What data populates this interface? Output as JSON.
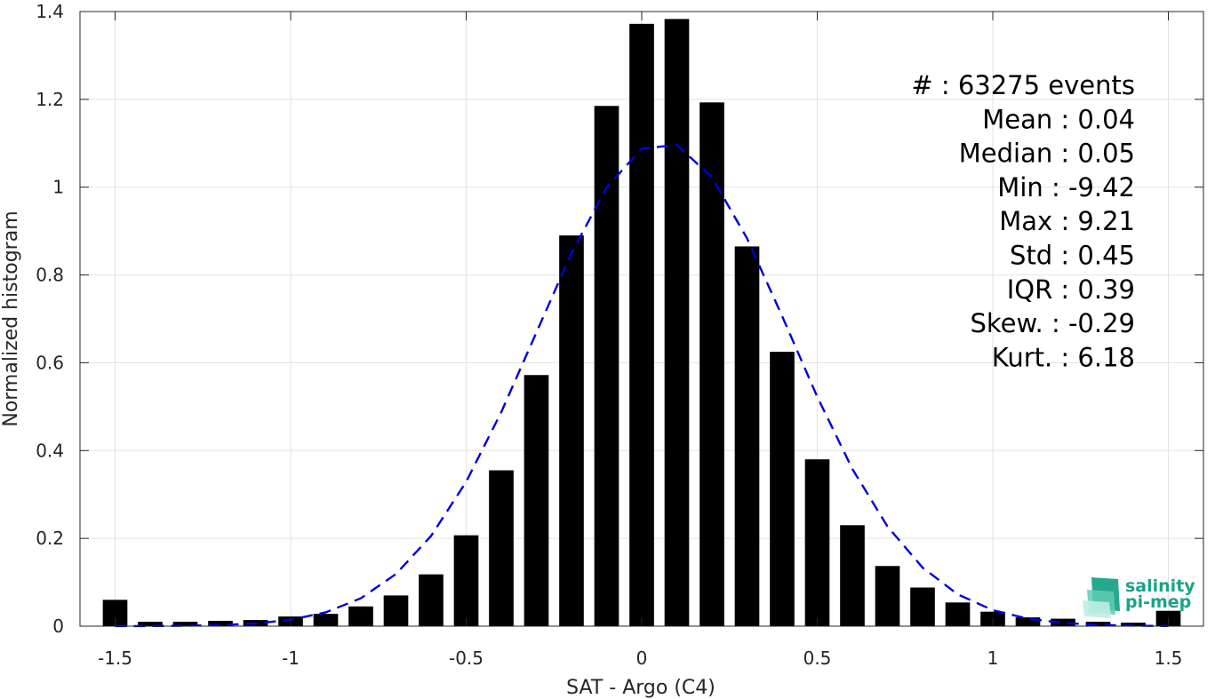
{
  "chart_data": {
    "type": "bar",
    "xlabel": "SAT - Argo (C4)",
    "ylabel": "Normalized histogram",
    "xlim": [
      -1.6,
      1.6
    ],
    "ylim": [
      0,
      1.4
    ],
    "x_ticks": [
      -1.5,
      -1,
      -0.5,
      0,
      0.5,
      1,
      1.5
    ],
    "x_tick_labels": [
      "-1.5",
      "-1",
      "-0.5",
      "0",
      "0.5",
      "1",
      "1.5"
    ],
    "y_ticks": [
      0,
      0.2,
      0.4,
      0.6,
      0.8,
      1,
      1.2,
      1.4
    ],
    "y_tick_labels": [
      "0",
      "0.2",
      "0.4",
      "0.6",
      "0.8",
      "1",
      "1.2",
      "1.4"
    ],
    "grid": true,
    "bar_color": "#000000",
    "bars": {
      "x": [
        -1.5,
        -1.4,
        -1.3,
        -1.2,
        -1.1,
        -1.0,
        -0.9,
        -0.8,
        -0.7,
        -0.6,
        -0.5,
        -0.4,
        -0.3,
        -0.2,
        -0.1,
        0.0,
        0.1,
        0.2,
        0.3,
        0.4,
        0.5,
        0.6,
        0.7,
        0.8,
        0.9,
        1.0,
        1.1,
        1.2,
        1.3,
        1.4,
        1.5
      ],
      "values": [
        0.06,
        0.01,
        0.01,
        0.012,
        0.014,
        0.022,
        0.028,
        0.045,
        0.07,
        0.118,
        0.207,
        0.355,
        0.572,
        0.89,
        1.185,
        1.372,
        1.383,
        1.193,
        0.865,
        0.625,
        0.38,
        0.23,
        0.137,
        0.088,
        0.054,
        0.033,
        0.02,
        0.017,
        0.01,
        0.008,
        0.035
      ]
    },
    "fit_curve": {
      "style": "dashed",
      "color": "#0000dd",
      "mean": 0.06,
      "peak": 1.103,
      "std": 0.36,
      "x_range": [
        -1.5,
        1.5
      ]
    },
    "annotations": [
      "#  : 63275 events",
      "Mean : 0.04",
      "Median : 0.05",
      "Min : -9.42",
      "Max : 9.21",
      "Std : 0.45",
      "IQR : 0.39",
      "Skew. : -0.29",
      "Kurt. : 6.18"
    ]
  },
  "logo": {
    "line1": "salinity",
    "line2": "pi-mep",
    "color": "#1aa389"
  }
}
